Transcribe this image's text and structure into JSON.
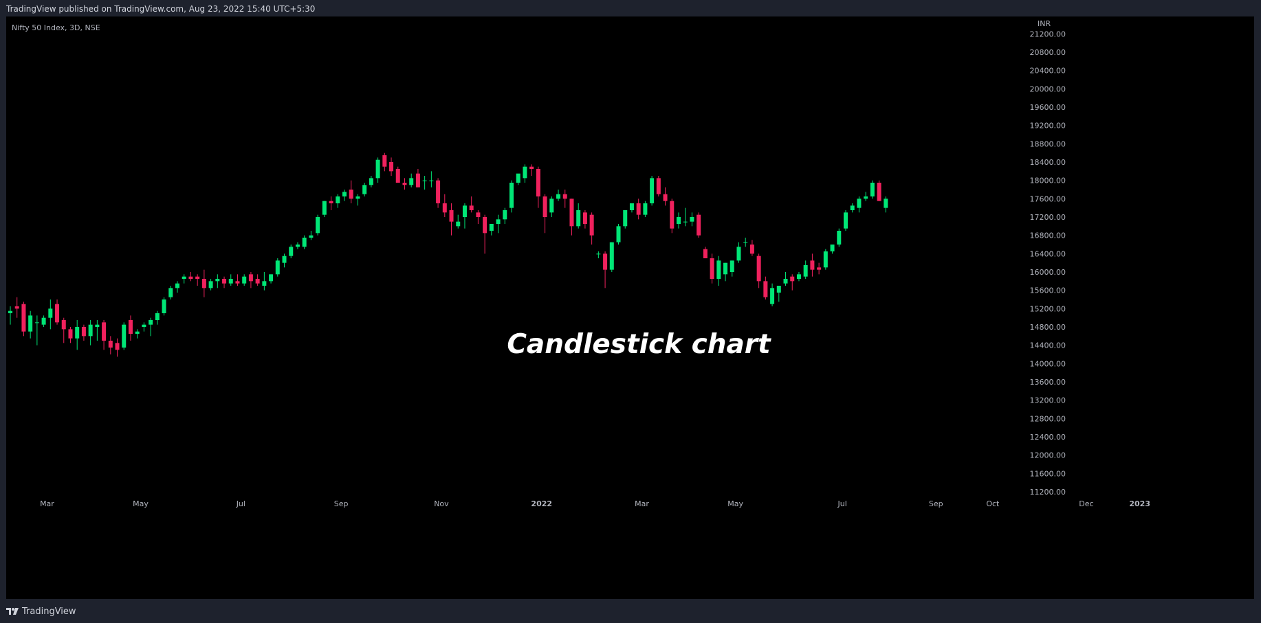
{
  "published": "TradingView published on TradingView.com, Aug 23, 2022 15:40 UTC+5:30",
  "brand": "TradingView",
  "colors": {
    "up": "#00e676",
    "down": "#f0215d",
    "background": "#000000",
    "frame": "#1e222d",
    "text": "#b2b5be"
  },
  "chart_data": {
    "type": "candlestick",
    "symbol_line": "Nifty 50 Index, 3D, NSE",
    "currency": "INR",
    "title": "Candlestick chart",
    "ylim": [
      11200,
      21250
    ],
    "y_ticks": [
      21200,
      20800,
      20400,
      20000,
      19600,
      19200,
      18800,
      18400,
      18000,
      17600,
      17200,
      16800,
      16400,
      16000,
      15600,
      15200,
      14800,
      14400,
      14000,
      13600,
      13200,
      12800,
      12400,
      12000,
      11600,
      11200
    ],
    "x_ticks": [
      {
        "label": "Mar",
        "index": 5.5,
        "bold": false
      },
      {
        "label": "May",
        "index": 19.5,
        "bold": false
      },
      {
        "label": "Jul",
        "index": 34.5,
        "bold": false
      },
      {
        "label": "Sep",
        "index": 49.5,
        "bold": false
      },
      {
        "label": "Nov",
        "index": 64.5,
        "bold": false
      },
      {
        "label": "2022",
        "index": 79.5,
        "bold": true
      },
      {
        "label": "Mar",
        "index": 94.5,
        "bold": false
      },
      {
        "label": "May",
        "index": 108.5,
        "bold": false
      },
      {
        "label": "Jul",
        "index": 124.5,
        "bold": false
      },
      {
        "label": "Sep",
        "index": 138.5,
        "bold": false
      },
      {
        "label": "Oct",
        "index": 147,
        "bold": false
      },
      {
        "label": "Dec",
        "index": 161,
        "bold": false
      },
      {
        "label": "2023",
        "index": 169,
        "bold": true
      }
    ],
    "candles": [
      [
        15100,
        15250,
        14850,
        15150
      ],
      [
        15250,
        15450,
        15000,
        15200
      ],
      [
        15300,
        15350,
        14600,
        14700
      ],
      [
        14700,
        15150,
        14550,
        15050
      ],
      [
        14900,
        15050,
        14400,
        14900
      ],
      [
        14850,
        15050,
        14800,
        15000
      ],
      [
        15000,
        15400,
        14750,
        15200
      ],
      [
        15300,
        15400,
        14850,
        14900
      ],
      [
        14950,
        15000,
        14450,
        14750
      ],
      [
        14750,
        14800,
        14450,
        14550
      ],
      [
        14550,
        14950,
        14300,
        14800
      ],
      [
        14800,
        14850,
        14500,
        14600
      ],
      [
        14600,
        14950,
        14400,
        14850
      ],
      [
        14800,
        14950,
        14500,
        14850
      ],
      [
        14900,
        14950,
        14300,
        14500
      ],
      [
        14500,
        14600,
        14200,
        14350
      ],
      [
        14450,
        14550,
        14150,
        14300
      ],
      [
        14350,
        14900,
        14300,
        14850
      ],
      [
        14950,
        15050,
        14500,
        14650
      ],
      [
        14650,
        14750,
        14550,
        14700
      ],
      [
        14800,
        14900,
        14700,
        14850
      ],
      [
        14850,
        15000,
        14600,
        14950
      ],
      [
        14950,
        15150,
        14850,
        15100
      ],
      [
        15100,
        15450,
        15050,
        15400
      ],
      [
        15450,
        15700,
        15400,
        15650
      ],
      [
        15650,
        15800,
        15550,
        15750
      ],
      [
        15850,
        15950,
        15750,
        15900
      ],
      [
        15900,
        16000,
        15800,
        15850
      ],
      [
        15900,
        15950,
        15700,
        15850
      ],
      [
        15850,
        16050,
        15450,
        15650
      ],
      [
        15650,
        15850,
        15600,
        15800
      ],
      [
        15800,
        15950,
        15650,
        15850
      ],
      [
        15850,
        15900,
        15650,
        15750
      ],
      [
        15750,
        15950,
        15700,
        15850
      ],
      [
        15800,
        15950,
        15700,
        15750
      ],
      [
        15750,
        15950,
        15700,
        15900
      ],
      [
        15950,
        16000,
        15650,
        15800
      ],
      [
        15850,
        15950,
        15700,
        15750
      ],
      [
        15700,
        16000,
        15600,
        15800
      ],
      [
        15800,
        15950,
        15750,
        15950
      ],
      [
        15950,
        16300,
        15900,
        16250
      ],
      [
        16200,
        16400,
        16100,
        16350
      ],
      [
        16350,
        16600,
        16300,
        16550
      ],
      [
        16550,
        16650,
        16500,
        16600
      ],
      [
        16550,
        16800,
        16500,
        16750
      ],
      [
        16750,
        16900,
        16700,
        16800
      ],
      [
        16850,
        17250,
        16800,
        17200
      ],
      [
        17250,
        17550,
        17200,
        17550
      ],
      [
        17550,
        17650,
        17350,
        17500
      ],
      [
        17500,
        17700,
        17400,
        17650
      ],
      [
        17650,
        17800,
        17550,
        17750
      ],
      [
        17800,
        18000,
        17500,
        17600
      ],
      [
        17600,
        17700,
        17450,
        17650
      ],
      [
        17700,
        17950,
        17650,
        17900
      ],
      [
        17900,
        18100,
        17850,
        18050
      ],
      [
        18050,
        18500,
        17950,
        18450
      ],
      [
        18550,
        18600,
        18200,
        18300
      ],
      [
        18400,
        18500,
        18100,
        18200
      ],
      [
        18250,
        18300,
        17950,
        17950
      ],
      [
        17950,
        18050,
        17800,
        17900
      ],
      [
        17900,
        18150,
        17850,
        18050
      ],
      [
        18150,
        18250,
        17850,
        17850
      ],
      [
        18000,
        18100,
        17800,
        18000
      ],
      [
        18000,
        18200,
        17850,
        18000
      ],
      [
        18000,
        18050,
        17400,
        17500
      ],
      [
        17500,
        17700,
        17200,
        17300
      ],
      [
        17350,
        17500,
        16800,
        17100
      ],
      [
        17000,
        17250,
        16950,
        17100
      ],
      [
        17200,
        17500,
        16950,
        17450
      ],
      [
        17450,
        17650,
        17300,
        17350
      ],
      [
        17300,
        17350,
        17050,
        17200
      ],
      [
        17200,
        17250,
        16400,
        16850
      ],
      [
        16900,
        17050,
        16800,
        17050
      ],
      [
        17050,
        17250,
        16850,
        17150
      ],
      [
        17150,
        17400,
        17050,
        17350
      ],
      [
        17400,
        18000,
        17300,
        17950
      ],
      [
        17950,
        18100,
        17900,
        18150
      ],
      [
        18050,
        18350,
        17950,
        18300
      ],
      [
        18300,
        18350,
        18100,
        18250
      ],
      [
        18250,
        18300,
        17400,
        17650
      ],
      [
        17650,
        17700,
        16850,
        17200
      ],
      [
        17300,
        17650,
        17200,
        17600
      ],
      [
        17600,
        17800,
        17550,
        17700
      ],
      [
        17700,
        17800,
        17400,
        17600
      ],
      [
        17600,
        17600,
        16800,
        17000
      ],
      [
        17000,
        17500,
        16950,
        17350
      ],
      [
        17300,
        17350,
        16950,
        17050
      ],
      [
        17250,
        17300,
        16600,
        16800
      ],
      [
        16400,
        16450,
        16300,
        16400
      ],
      [
        16400,
        16450,
        15650,
        16050
      ],
      [
        16050,
        16650,
        16000,
        16650
      ],
      [
        16650,
        17050,
        16600,
        17000
      ],
      [
        17000,
        17350,
        16950,
        17350
      ],
      [
        17350,
        17500,
        17300,
        17500
      ],
      [
        17500,
        17600,
        17150,
        17250
      ],
      [
        17250,
        17550,
        17200,
        17500
      ],
      [
        17500,
        18100,
        17450,
        18050
      ],
      [
        18050,
        18100,
        17650,
        17700
      ],
      [
        17700,
        17850,
        17450,
        17550
      ],
      [
        17550,
        17600,
        16850,
        16950
      ],
      [
        17050,
        17300,
        16950,
        17200
      ],
      [
        17100,
        17400,
        17000,
        17100
      ],
      [
        17100,
        17300,
        17000,
        17200
      ],
      [
        17250,
        17300,
        16750,
        16800
      ],
      [
        16500,
        16550,
        16300,
        16300
      ],
      [
        16300,
        16400,
        15750,
        15850
      ],
      [
        15850,
        16350,
        15700,
        16250
      ],
      [
        15950,
        16200,
        15800,
        16200
      ],
      [
        16000,
        16250,
        15900,
        16250
      ],
      [
        16250,
        16650,
        16200,
        16550
      ],
      [
        16650,
        16750,
        16550,
        16650
      ],
      [
        16600,
        16700,
        16350,
        16400
      ],
      [
        16350,
        16400,
        15650,
        15800
      ],
      [
        15800,
        15900,
        15400,
        15450
      ],
      [
        15300,
        15750,
        15250,
        15650
      ],
      [
        15550,
        15650,
        15350,
        15700
      ],
      [
        15750,
        16000,
        15700,
        15850
      ],
      [
        15900,
        15950,
        15600,
        15800
      ],
      [
        15850,
        16000,
        15800,
        15950
      ],
      [
        15900,
        16250,
        15850,
        16150
      ],
      [
        16250,
        16400,
        15900,
        16050
      ],
      [
        16100,
        16200,
        15950,
        16050
      ],
      [
        16100,
        16500,
        16050,
        16450
      ],
      [
        16450,
        16600,
        16400,
        16600
      ],
      [
        16600,
        16950,
        16550,
        16900
      ],
      [
        16950,
        17350,
        16900,
        17300
      ],
      [
        17350,
        17500,
        17300,
        17450
      ],
      [
        17400,
        17650,
        17300,
        17600
      ],
      [
        17600,
        17750,
        17550,
        17650
      ],
      [
        17650,
        18000,
        17600,
        17950
      ],
      [
        17950,
        18000,
        17550,
        17550
      ],
      [
        17400,
        17650,
        17300,
        17600
      ]
    ]
  }
}
